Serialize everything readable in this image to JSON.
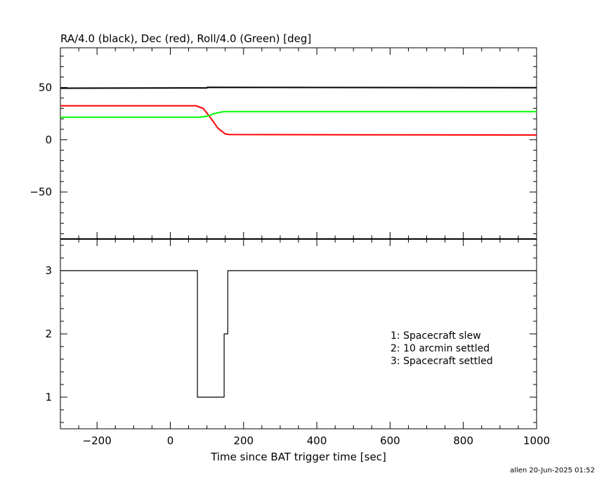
{
  "chart_data": [
    {
      "type": "line",
      "title": "RA/4.0 (black), Dec (red), Roll/4.0 (Green) [deg]",
      "xlim": [
        -300,
        1000
      ],
      "ylim": [
        -95,
        88
      ],
      "yticks": [
        50,
        0,
        -50
      ],
      "series": [
        {
          "color": "#000000",
          "x": [
            -300,
            100,
            101,
            1000
          ],
          "y": [
            49.3,
            49.6,
            50.1,
            49.8
          ]
        },
        {
          "color": "#ff0000",
          "x": [
            -300,
            70,
            90,
            110,
            130,
            150,
            160,
            1000
          ],
          "y": [
            32.5,
            32.5,
            30,
            21,
            11,
            5.6,
            5,
            4.5
          ]
        },
        {
          "color": "#00ff00",
          "x": [
            -300,
            80,
            100,
            120,
            140,
            150,
            1000
          ],
          "y": [
            21.5,
            21.5,
            22.5,
            25,
            26.5,
            27,
            27
          ]
        }
      ]
    },
    {
      "type": "line",
      "step": true,
      "xlabel": "Time since BAT trigger time [sec]",
      "xlim": [
        -300,
        1000
      ],
      "ylim": [
        0.5,
        3.5
      ],
      "xticks": [
        -200,
        0,
        200,
        400,
        600,
        800,
        1000
      ],
      "yticks": [
        3,
        2,
        1
      ],
      "series": [
        {
          "color": "#000000",
          "x": [
            -300,
            74,
            74,
            147,
            147,
            157,
            157,
            1000
          ],
          "y": [
            3,
            3,
            1,
            1,
            2,
            2,
            3,
            3
          ]
        }
      ],
      "legend": [
        "1: Spacecraft slew",
        "2: 10 arcmin settled",
        "3: Spacecraft settled"
      ]
    }
  ],
  "footer": "allen 20-Jun-2025 01:52"
}
